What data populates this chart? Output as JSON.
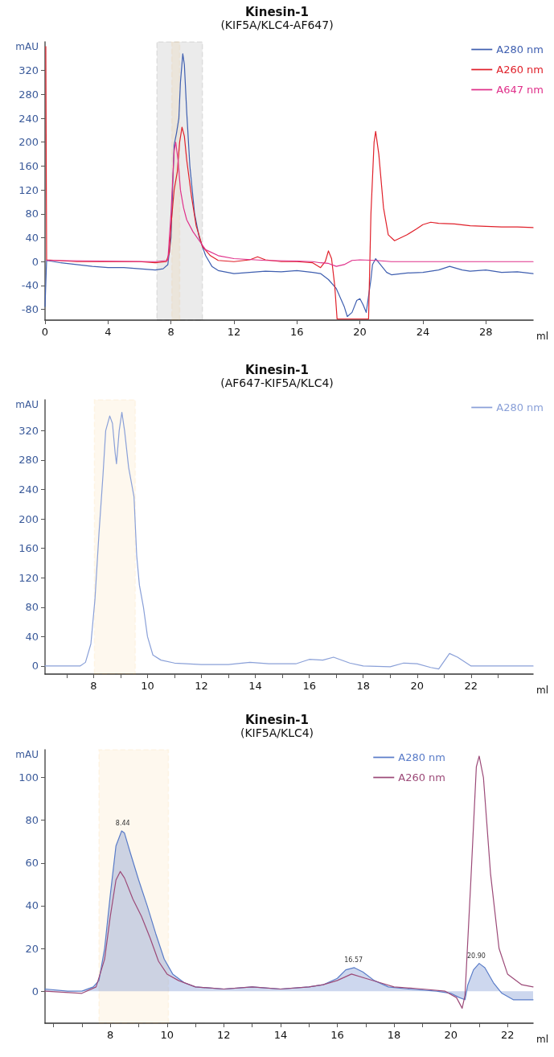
{
  "chart_data": [
    {
      "type": "line",
      "title": "Kinesin-1",
      "subtitle": "(KIF5A/KLC4-AF647)",
      "xlabel": "ml",
      "ylabel": "mAU",
      "legend": "top right",
      "marker": "none",
      "line_style": "solid",
      "xlim": [
        0,
        31
      ],
      "ylim": [
        -98,
        368
      ],
      "xticks": [
        0,
        4,
        8,
        12,
        16,
        20,
        24,
        28
      ],
      "yticks": [
        -80,
        -40,
        0,
        40,
        80,
        120,
        160,
        200,
        240,
        280,
        320
      ],
      "bands": [
        {
          "axis": "x",
          "from": 7.1,
          "to": 10,
          "color": "#000000"
        },
        {
          "axis": "x",
          "from": 8.05,
          "to": 8.55,
          "color": "#f0a820"
        }
      ],
      "series": [
        {
          "name": "A280 nm",
          "color": "#3f5fb0",
          "x": [
            0,
            0.1,
            1,
            2,
            3,
            4,
            5,
            6,
            7,
            7.5,
            7.8,
            8.0,
            8.1,
            8.2,
            8.35,
            8.5,
            8.6,
            8.75,
            8.85,
            9.0,
            9.2,
            9.5,
            9.8,
            10.2,
            10.6,
            11,
            12,
            13,
            14,
            15,
            16,
            17,
            17.5,
            18,
            18.5,
            19,
            19.2,
            19.5,
            19.8,
            20,
            20.2,
            20.4,
            20.7,
            20.8,
            21,
            21.3,
            21.7,
            22,
            23,
            24,
            25,
            25.7,
            26.5,
            27,
            28,
            29,
            30,
            31
          ],
          "values": [
            -75,
            2,
            -2,
            -5,
            -8,
            -10,
            -10,
            -12,
            -14,
            -12,
            -5,
            40,
            120,
            195,
            215,
            240,
            300,
            348,
            330,
            250,
            160,
            80,
            40,
            10,
            -8,
            -15,
            -20,
            -18,
            -16,
            -17,
            -15,
            -18,
            -20,
            -30,
            -45,
            -75,
            -92,
            -85,
            -65,
            -62,
            -72,
            -85,
            -30,
            -5,
            5,
            -5,
            -18,
            -22,
            -19,
            -18,
            -14,
            -8,
            -14,
            -16,
            -14,
            -18,
            -17,
            -20
          ]
        },
        {
          "name": "A260 nm",
          "color": "#e0202a",
          "x": [
            0.05,
            0.1,
            2,
            4,
            6,
            7,
            7.7,
            7.9,
            8.0,
            8.2,
            8.4,
            8.55,
            8.7,
            8.85,
            9.0,
            9.3,
            9.6,
            10,
            10.5,
            11,
            12,
            13,
            13.5,
            14,
            15,
            16,
            17,
            17.5,
            17.8,
            18,
            18.2,
            18.4,
            18.55,
            20.55,
            20.7,
            20.9,
            21,
            21.2,
            21.5,
            21.8,
            22.2,
            23,
            23.6,
            24,
            24.5,
            25,
            26,
            27,
            28,
            29,
            30,
            31
          ],
          "values": [
            360,
            3,
            0,
            0,
            0,
            -2,
            0,
            15,
            60,
            120,
            150,
            200,
            225,
            210,
            170,
            110,
            60,
            25,
            10,
            2,
            0,
            3,
            8,
            3,
            0,
            0,
            -2,
            -10,
            0,
            18,
            5,
            -40,
            -96,
            -96,
            80,
            200,
            218,
            180,
            90,
            45,
            35,
            45,
            55,
            62,
            66,
            64,
            63,
            60,
            59,
            58,
            58,
            57
          ]
        },
        {
          "name": "A647 nm",
          "color": "#e0308a",
          "x": [
            0.1,
            7,
            7.8,
            8.0,
            8.2,
            8.3,
            8.45,
            8.6,
            8.8,
            9.0,
            9.4,
            9.8,
            10.2,
            11,
            12,
            14,
            16,
            17,
            17.5,
            18,
            18.5,
            19,
            19.5,
            20,
            21,
            22,
            31
          ],
          "values": [
            2,
            0,
            2,
            80,
            185,
            200,
            170,
            120,
            90,
            70,
            50,
            35,
            20,
            10,
            5,
            2,
            1,
            0,
            -2,
            -3,
            -8,
            -5,
            2,
            3,
            2,
            0,
            0
          ]
        }
      ]
    },
    {
      "type": "line",
      "title": "Kinesin-1",
      "subtitle": "(AF647-KIF5A/KLC4)",
      "xlabel": "ml",
      "ylabel": "mAU",
      "legend": "top right",
      "marker": "none",
      "line_style": "solid",
      "xlim": [
        6.2,
        24.3
      ],
      "ylim": [
        -11,
        362
      ],
      "xticks": [
        {
          "value": 7,
          "label": null
        },
        8,
        {
          "value": 9,
          "label": null
        },
        10,
        {
          "value": 11,
          "label": null
        },
        12,
        {
          "value": 13,
          "label": null
        },
        14,
        {
          "value": 15,
          "label": null
        },
        16,
        {
          "value": 17,
          "label": null
        },
        18,
        {
          "value": 19,
          "label": null
        },
        20,
        {
          "value": 21,
          "label": null
        },
        22,
        {
          "value": 23,
          "label": null
        }
      ],
      "yticks": [
        0,
        40,
        80,
        120,
        160,
        200,
        240,
        280,
        320
      ],
      "bands": [
        {
          "axis": "x",
          "from": 8.03,
          "to": 9.55,
          "color": "#f0a820"
        }
      ],
      "series": [
        {
          "name": "A280 nm",
          "color": "#8aa0d8",
          "x": [
            6.2,
            7.5,
            7.7,
            7.9,
            8.05,
            8.2,
            8.35,
            8.45,
            8.6,
            8.7,
            8.8,
            8.85,
            8.95,
            9.05,
            9.15,
            9.3,
            9.5,
            9.6,
            9.7,
            9.85,
            10,
            10.2,
            10.5,
            11,
            12,
            13,
            13.8,
            14.5,
            15.5,
            16,
            16.5,
            16.9,
            17.5,
            18,
            19,
            19.5,
            20,
            20.5,
            20.8,
            21.2,
            21.5,
            22,
            24.3
          ],
          "values": [
            0,
            0,
            5,
            30,
            90,
            180,
            260,
            320,
            340,
            330,
            290,
            275,
            320,
            345,
            320,
            270,
            230,
            150,
            110,
            80,
            40,
            15,
            8,
            4,
            2,
            2,
            5,
            3,
            3,
            9,
            8,
            12,
            4,
            0,
            -1,
            4,
            3,
            -2,
            -4,
            17,
            12,
            0,
            0
          ]
        }
      ]
    },
    {
      "type": "line",
      "title": "Kinesin-1",
      "subtitle": "(KIF5A/KLC4)",
      "xlabel": "ml",
      "ylabel": "mAU",
      "legend": "top right",
      "marker": "none",
      "line_style": "solid",
      "xlim": [
        5.7,
        22.9
      ],
      "ylim": [
        -15,
        113
      ],
      "xticks": [
        {
          "value": 6,
          "label": null
        },
        {
          "value": 7,
          "label": null
        },
        8,
        {
          "value": 9,
          "label": null
        },
        10,
        {
          "value": 11,
          "label": null
        },
        12,
        {
          "value": 13,
          "label": null
        },
        14,
        {
          "value": 15,
          "label": null
        },
        16,
        {
          "value": 17,
          "label": null
        },
        18,
        {
          "value": 19,
          "label": null
        },
        20,
        {
          "value": 21,
          "label": null
        },
        22
      ],
      "yticks": [
        0,
        20,
        40,
        60,
        80,
        100
      ],
      "bands": [
        {
          "axis": "x",
          "from": 7.6,
          "to": 10.05,
          "color": "#f0a820"
        }
      ],
      "annotations": [
        {
          "text": "8.44",
          "x": 8.44,
          "y": 75
        },
        {
          "text": "16.57",
          "x": 16.57,
          "y": 11
        },
        {
          "text": "20.90",
          "x": 20.9,
          "y": 13
        }
      ],
      "series": [
        {
          "name": "A280 nm",
          "type": "area",
          "color": "#5a7cc8",
          "x": [
            5.7,
            6.5,
            7,
            7.4,
            7.6,
            7.8,
            8.0,
            8.2,
            8.4,
            8.5,
            8.7,
            9.0,
            9.3,
            9.6,
            9.9,
            10.2,
            10.6,
            11,
            12,
            13,
            14,
            15,
            15.5,
            16,
            16.3,
            16.6,
            16.9,
            17.3,
            17.8,
            18.5,
            19.5,
            20,
            20.3,
            20.5,
            20.6,
            20.8,
            21.0,
            21.2,
            21.5,
            21.8,
            22.2,
            22.9
          ],
          "values": [
            1,
            0,
            0,
            2,
            5,
            20,
            45,
            68,
            75,
            74,
            65,
            52,
            40,
            27,
            15,
            8,
            4,
            2,
            1,
            2,
            1,
            2,
            3,
            6,
            10,
            11,
            9,
            5,
            2,
            1,
            0,
            -1,
            -3,
            -4,
            3,
            10,
            13,
            11,
            4,
            -1,
            -4,
            -4
          ]
        },
        {
          "name": "A260 nm",
          "color": "#9c4a78",
          "x": [
            5.7,
            7,
            7.5,
            7.8,
            8.0,
            8.2,
            8.35,
            8.5,
            8.8,
            9.1,
            9.4,
            9.7,
            10,
            10.4,
            11,
            12,
            13,
            14,
            15,
            15.5,
            16,
            16.5,
            17,
            17.5,
            18,
            19,
            19.8,
            20.2,
            20.4,
            20.5,
            20.7,
            20.9,
            21.0,
            21.15,
            21.4,
            21.7,
            22,
            22.5,
            22.9
          ],
          "values": [
            0,
            -1,
            2,
            15,
            35,
            52,
            56,
            53,
            43,
            35,
            25,
            14,
            8,
            5,
            2,
            1,
            2,
            1,
            2,
            3,
            5,
            8,
            6,
            4,
            2,
            1,
            0,
            -3,
            -8,
            -2,
            50,
            105,
            110,
            100,
            55,
            20,
            8,
            3,
            2
          ]
        }
      ]
    }
  ]
}
